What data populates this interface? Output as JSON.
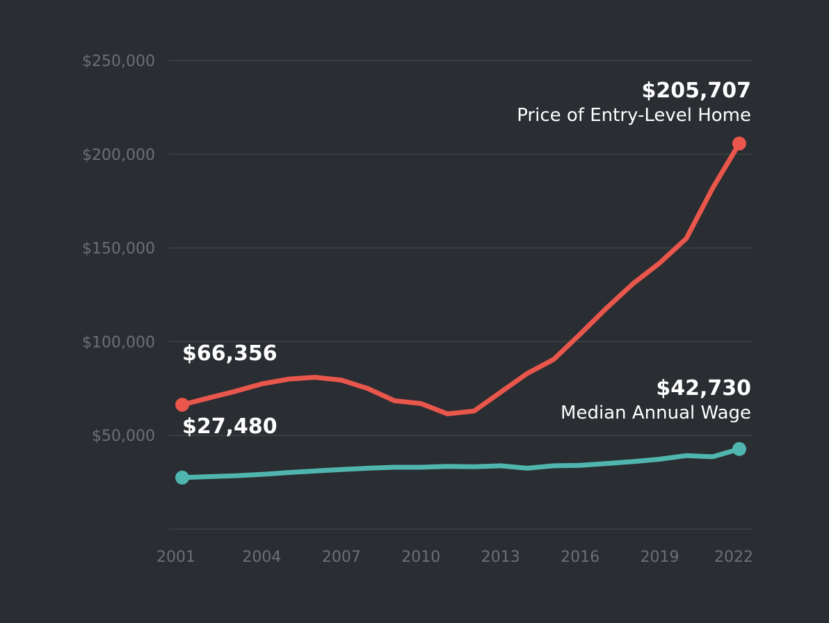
{
  "chart_data": {
    "type": "line",
    "title": "",
    "xlabel": "",
    "ylabel": "",
    "x": [
      2001,
      2002,
      2003,
      2004,
      2005,
      2006,
      2007,
      2008,
      2009,
      2010,
      2011,
      2012,
      2013,
      2014,
      2015,
      2016,
      2017,
      2018,
      2019,
      2020,
      2021,
      2022
    ],
    "x_ticks": [
      "2001",
      "2004",
      "2007",
      "2010",
      "2013",
      "2016",
      "2019",
      "2022"
    ],
    "y_ticks": [
      "$250,000",
      "$200,000",
      "$150,000",
      "$100,000",
      "$50,000"
    ],
    "y_tick_values": [
      250000,
      200000,
      150000,
      100000,
      50000
    ],
    "ylim": [
      0,
      250000
    ],
    "xlim": [
      2001,
      2022
    ],
    "grid": true,
    "series": [
      {
        "name": "Price of Entry-Level Home",
        "color": "#e8564c",
        "values": [
          66356,
          70000,
          73500,
          77500,
          80000,
          81000,
          79500,
          75000,
          68500,
          67000,
          61500,
          63000,
          73000,
          83000,
          90500,
          104000,
          118000,
          131000,
          142000,
          155000,
          182000,
          205707
        ],
        "start_label": "$66,356",
        "end_label": "$205,707",
        "end_name": "Price of Entry-Level Home"
      },
      {
        "name": "Median Annual Wage",
        "color": "#4fb5ae",
        "values": [
          27480,
          28000,
          28500,
          29200,
          30200,
          31000,
          31800,
          32500,
          33000,
          33000,
          33500,
          33300,
          33800,
          32500,
          33800,
          34000,
          35000,
          36000,
          37300,
          39200,
          38600,
          42730
        ],
        "start_label": "$27,480",
        "end_label": "$42,730",
        "end_name": "Median Annual Wage"
      }
    ]
  }
}
